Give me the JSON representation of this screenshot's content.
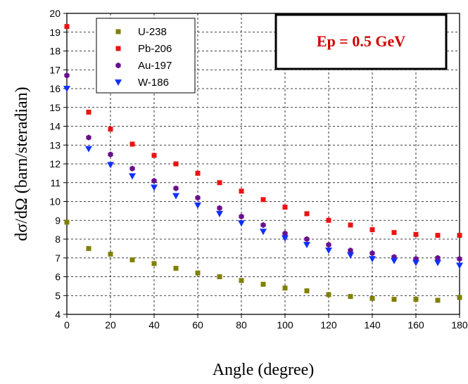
{
  "chart_data": {
    "type": "scatter",
    "xlabel": "Angle (degree)",
    "ylabel": "dσ/dΩ (barn/steradian)",
    "xlim": [
      0,
      180
    ],
    "ylim": [
      4,
      20
    ],
    "xticks": [
      0,
      20,
      40,
      60,
      80,
      100,
      120,
      140,
      160,
      180
    ],
    "yticks": [
      4,
      5,
      6,
      7,
      8,
      9,
      10,
      11,
      12,
      13,
      14,
      15,
      16,
      17,
      18,
      19,
      20
    ],
    "grid": true,
    "legend_position": "top-left",
    "annotation": "Ep = 0.5 GeV",
    "x": [
      0,
      10,
      20,
      30,
      40,
      50,
      60,
      70,
      80,
      90,
      100,
      110,
      120,
      130,
      140,
      150,
      160,
      170,
      180
    ],
    "series": [
      {
        "name": "U-238",
        "marker": "square",
        "color": "#808000",
        "values": [
          8.9,
          7.5,
          7.2,
          6.9,
          6.7,
          6.45,
          6.2,
          6.0,
          5.8,
          5.6,
          5.4,
          5.25,
          5.05,
          4.95,
          4.85,
          4.8,
          4.8,
          4.75,
          4.9
        ]
      },
      {
        "name": "Pb-206",
        "marker": "square",
        "color": "#ee1111",
        "values": [
          19.3,
          14.75,
          13.85,
          13.05,
          12.45,
          12.0,
          11.5,
          11.0,
          10.55,
          10.1,
          9.7,
          9.35,
          9.0,
          8.75,
          8.5,
          8.35,
          8.25,
          8.2,
          8.2
        ]
      },
      {
        "name": "Au-197",
        "marker": "hexagon",
        "color": "#6a0f8e",
        "values": [
          16.7,
          13.4,
          12.5,
          11.75,
          11.1,
          10.7,
          10.2,
          9.65,
          9.2,
          8.75,
          8.3,
          8.0,
          7.7,
          7.4,
          7.25,
          7.05,
          6.95,
          7.0,
          6.95
        ]
      },
      {
        "name": "W-186",
        "marker": "triangle-down",
        "color": "#1030ff",
        "values": [
          16.0,
          12.8,
          11.95,
          11.35,
          10.75,
          10.3,
          9.8,
          9.35,
          8.85,
          8.4,
          8.05,
          7.7,
          7.4,
          7.15,
          6.95,
          6.85,
          6.75,
          6.75,
          6.6
        ]
      }
    ]
  }
}
